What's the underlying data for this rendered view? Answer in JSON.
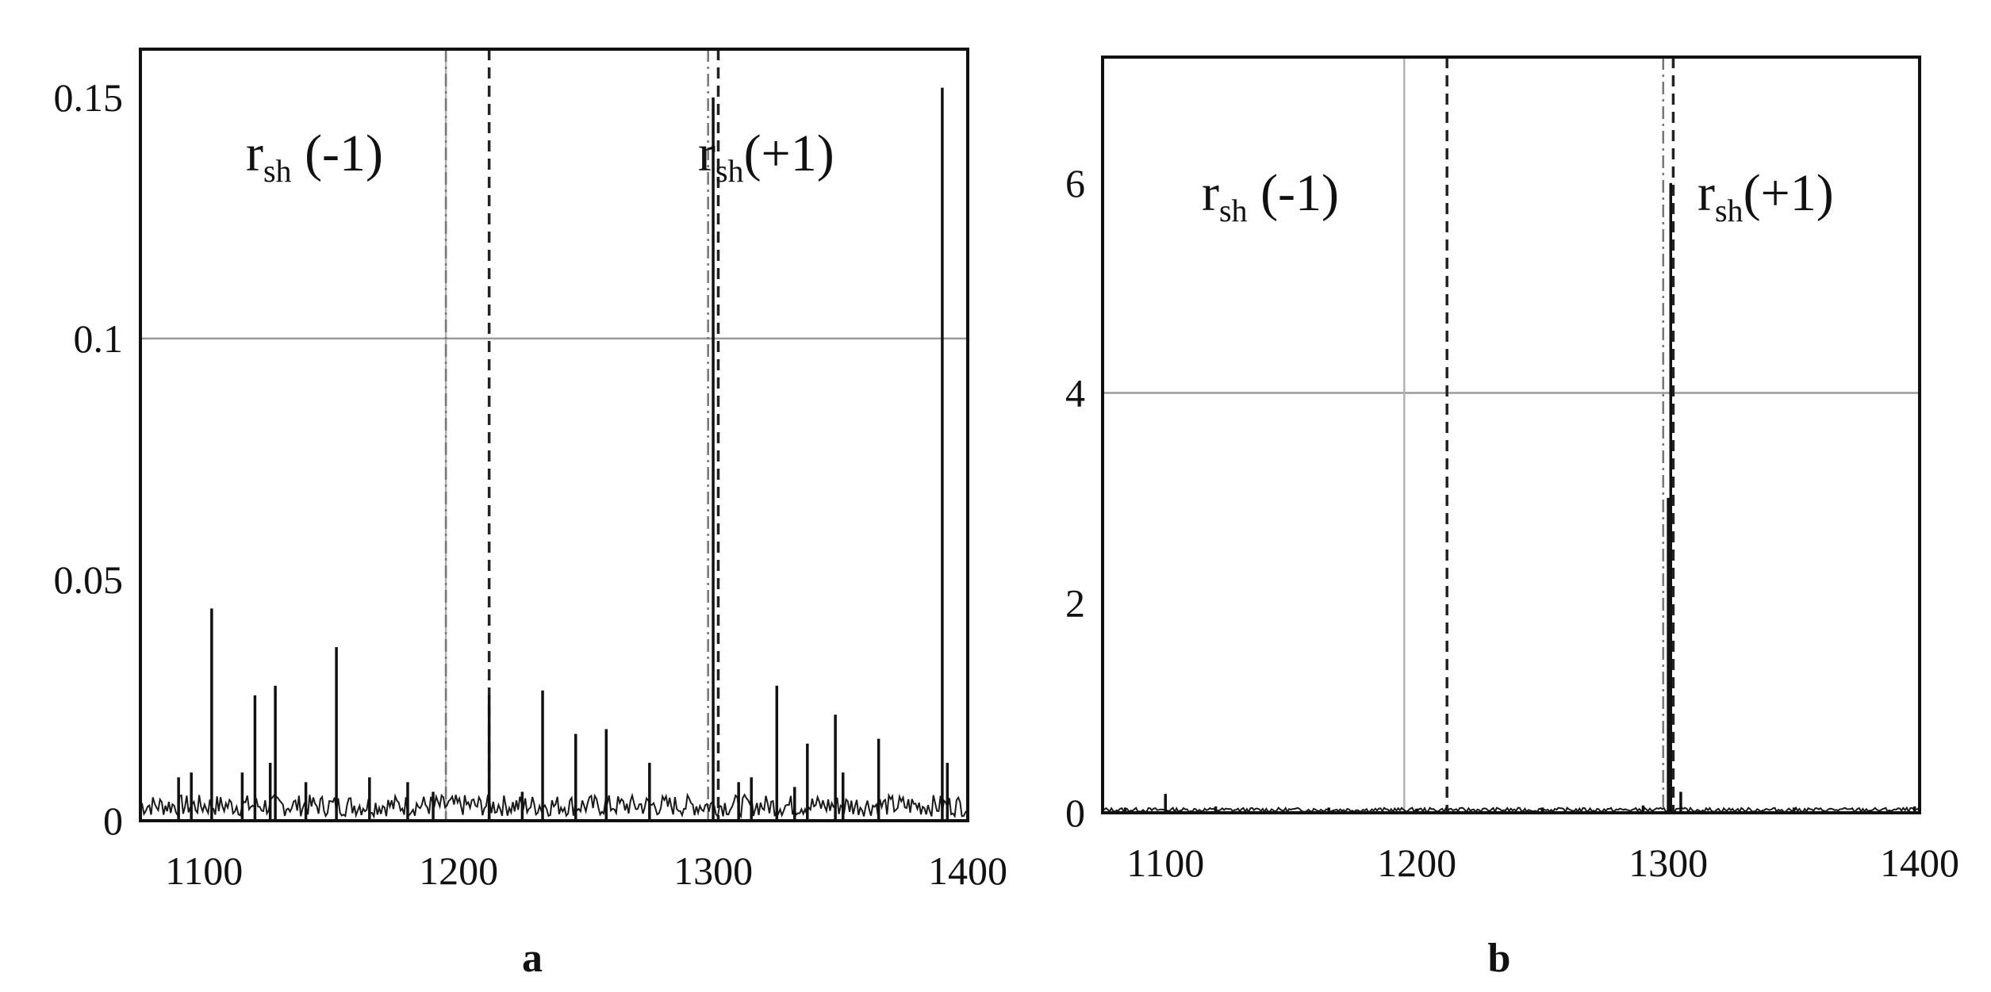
{
  "chart_data": [
    {
      "type": "bar",
      "panel_label": "a",
      "xlim": [
        1075,
        1400
      ],
      "ylim": [
        0,
        0.16
      ],
      "xticks": [
        "1100",
        "1200",
        "1300",
        "1400"
      ],
      "yticks": [
        "0",
        "0.05",
        "0.1",
        "0.15"
      ],
      "grid": {
        "x": [
          1195
        ],
        "y": [
          0.1
        ]
      },
      "reference_lines": {
        "dashdot": [
          1195,
          1298
        ],
        "dashed": [
          1212,
          1302
        ]
      },
      "annotations": [
        {
          "base": "r",
          "sub": "sh",
          "tail": " (-1)"
        },
        {
          "base": "r",
          "sub": "sh",
          "tail": "(+1)"
        }
      ],
      "x": [
        1090,
        1095,
        1103,
        1115,
        1120,
        1126,
        1128,
        1140,
        1152,
        1165,
        1180,
        1190,
        1212,
        1225,
        1233,
        1246,
        1258,
        1275,
        1300,
        1310,
        1315,
        1325,
        1332,
        1337,
        1348,
        1351,
        1365,
        1390,
        1392
      ],
      "values": [
        0.009,
        0.01,
        0.044,
        0.01,
        0.026,
        0.012,
        0.028,
        0.008,
        0.036,
        0.009,
        0.008,
        0.006,
        0.026,
        0.006,
        0.027,
        0.018,
        0.019,
        0.012,
        0.15,
        0.008,
        0.009,
        0.028,
        0.007,
        0.016,
        0.022,
        0.01,
        0.017,
        0.152,
        0.012
      ]
    },
    {
      "type": "bar",
      "panel_label": "b",
      "xlim": [
        1075,
        1400
      ],
      "ylim": [
        0,
        7.2
      ],
      "xticks": [
        "1100",
        "1200",
        "1300",
        "1400"
      ],
      "yticks": [
        "0",
        "2",
        "4",
        "6"
      ],
      "grid": {
        "x": [
          1195
        ],
        "y": [
          4
        ]
      },
      "reference_lines": {
        "dashdot": [
          1298
        ],
        "dashed": [
          1212,
          1302
        ]
      },
      "annotations": [
        {
          "base": "r",
          "sub": "sh",
          "tail": " (-1)"
        },
        {
          "base": "r",
          "sub": "sh",
          "tail": "(+1)"
        }
      ],
      "x": [
        1084,
        1100,
        1120,
        1165,
        1200,
        1250,
        1290,
        1300,
        1301,
        1305,
        1350,
        1398
      ],
      "values": [
        0.05,
        0.18,
        0.06,
        0.05,
        0.04,
        0.05,
        0.07,
        3.0,
        6.0,
        0.2,
        0.05,
        0.06
      ]
    }
  ]
}
